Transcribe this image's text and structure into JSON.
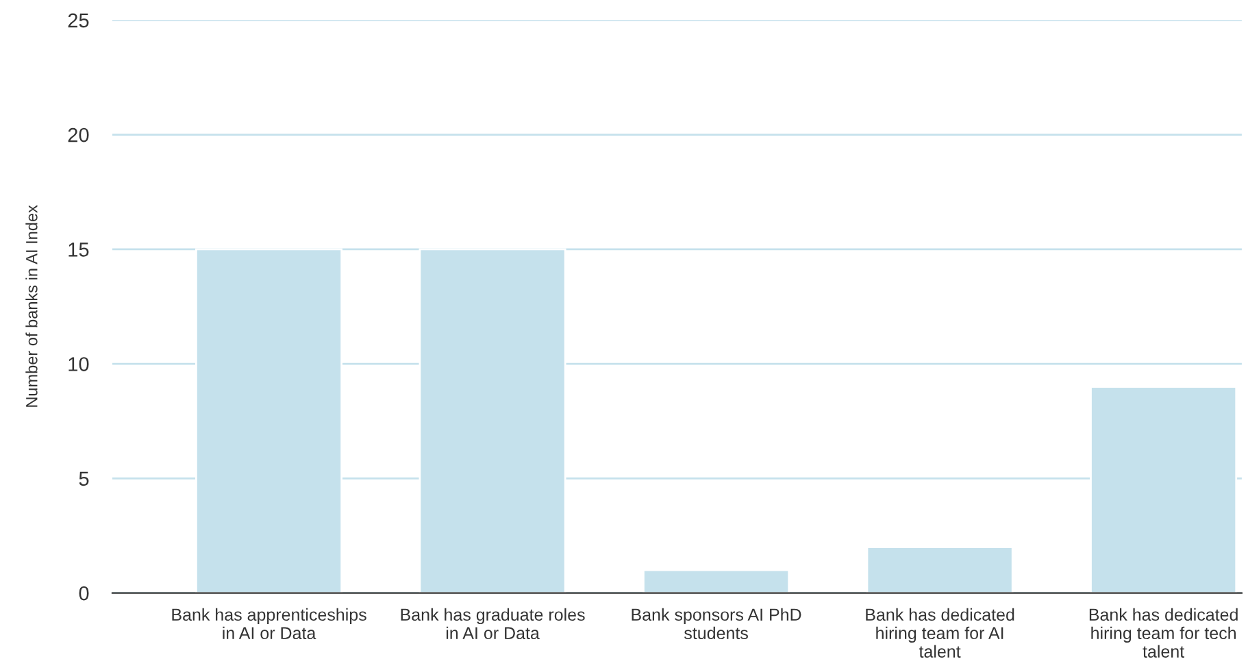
{
  "chart_data": {
    "type": "bar",
    "ylabel": "Number of banks in AI Index",
    "categories": [
      "Bank has apprenticeships in AI or Data",
      "Bank has graduate roles in AI or Data",
      "Bank sponsors AI PhD students",
      "Bank has dedicated hiring team for AI talent",
      "Bank has dedicated hiring team for tech talent"
    ],
    "values": [
      15,
      15,
      1,
      2,
      9
    ],
    "color": "#c5e1ec",
    "ylim": [
      0,
      25
    ],
    "yticks": [
      0,
      5,
      10,
      15,
      20,
      25
    ],
    "grid": "y",
    "legend": false
  }
}
